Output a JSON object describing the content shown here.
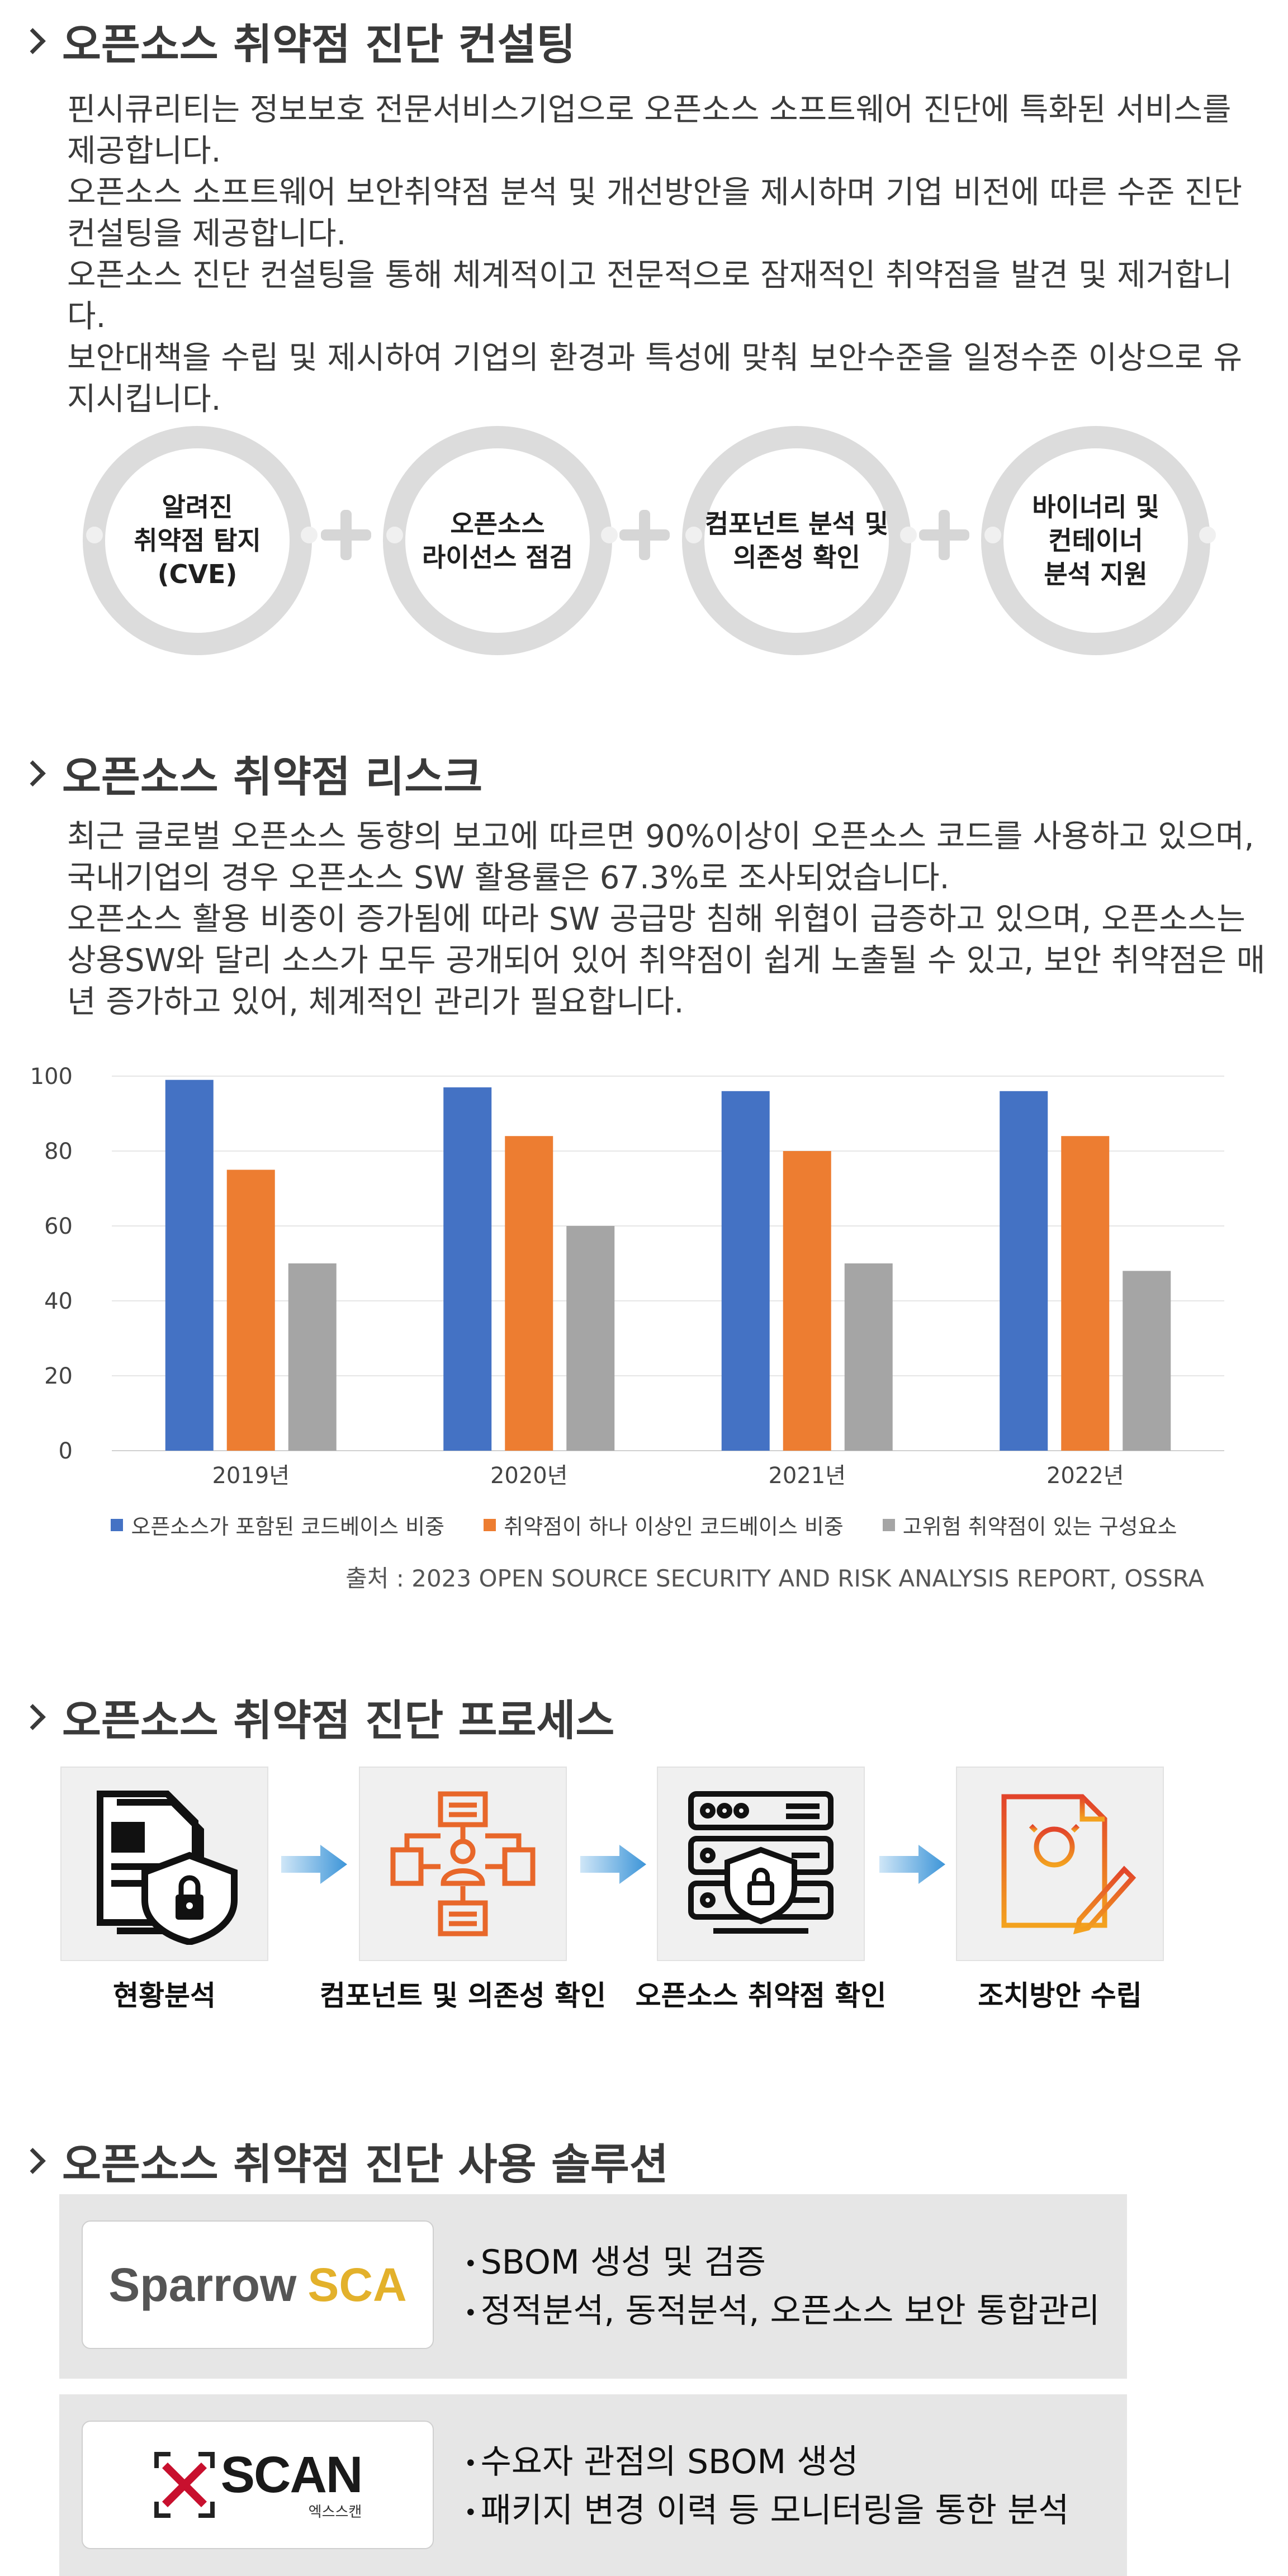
{
  "sections": {
    "consulting": {
      "title": "오픈소스 취약점 진단 컨설팅",
      "paragraphs": [
        "핀시큐리티는 정보보호 전문서비스기업으로 오픈소스 소프트웨어 진단에 특화된 서비스를 제공합니다.",
        "오픈소스 소프트웨어 보안취약점 분석 및 개선방안을 제시하며 기업 비전에 따른 수준 진단 컨설팅을 제공합니다.",
        "오픈소스 진단 컨설팅을 통해 체계적이고 전문적으로 잠재적인 취약점을 발견 및 제거합니다.",
        "보안대책을 수립 및 제시하여 기업의 환경과 특성에 맞춰 보안수준을 일정수준 이상으로 유지시킵니다."
      ],
      "circles": [
        "알려진\n취약점 탐지\n(CVE)",
        "오픈소스\n라이선스 점검",
        "컴포넌트 분석 및\n의존성 확인",
        "바이너리 및\n컨테이너\n분석 지원"
      ]
    },
    "risk": {
      "title": "오픈소스 취약점 리스크",
      "paragraphs": [
        "최근 글로벌 오픈소스 동향의 보고에 따르면 90%이상이 오픈소스 코드를 사용하고 있으며, 국내기업의 경우  오픈소스 SW 활용률은 67.3%로 조사되었습니다.",
        "오픈소스 활용 비중이 증가됨에 따라 SW 공급망 침해 위협이 급증하고 있으며, 오픈소스는 상용SW와 달리 소스가 모두 공개되어 있어 취약점이 쉽게 노출될 수 있고, 보안 취약점은 매년 증가하고 있어, 체계적인 관리가 필요합니다."
      ],
      "source": "출처 : 2023 OPEN SOURCE SECURITY AND RISK ANALYSIS REPORT, OSSRA"
    },
    "process": {
      "title": "오픈소스 취약점 진단 프로세스",
      "steps": [
        {
          "label": "현황분석",
          "icon": "document-lock-icon"
        },
        {
          "label": "컴포넌트 및 의존성 확인",
          "icon": "component-network-icon"
        },
        {
          "label": "오픈소스 취약점 확인",
          "icon": "server-shield-icon"
        },
        {
          "label": "조치방안 수립",
          "icon": "lightbulb-pencil-icon"
        }
      ]
    },
    "solutions": {
      "title": "오픈소스 취약점 진단 사용 솔루션",
      "items": [
        {
          "logo_main": "Sparrow",
          "logo_accent": "SCA",
          "features": [
            "SBOM 생성 및 검증",
            "정적분석, 동적분석, 오픈소스 보안 통합관리"
          ]
        },
        {
          "logo_main": "SCAN",
          "logo_sub": "엑스스캔",
          "features": [
            "수요자 관점의 SBOM 생성",
            "패키지 변경 이력 등 모니터링을 통한 분석"
          ]
        }
      ]
    }
  },
  "chart_data": {
    "type": "bar",
    "categories": [
      "2019년",
      "2020년",
      "2021년",
      "2022년"
    ],
    "series": [
      {
        "name": "오픈소스가 포함된 코드베이스 비중",
        "values": [
          99,
          97,
          96,
          96
        ],
        "color": "#4472c4"
      },
      {
        "name": "취약점이 하나 이상인 코드베이스 비중",
        "values": [
          75,
          84,
          80,
          84
        ],
        "color": "#ed7d31"
      },
      {
        "name": "고위험 취약점이 있는 구성요소",
        "values": [
          50,
          60,
          50,
          48
        ],
        "color": "#a5a5a5"
      }
    ],
    "yticks": [
      0,
      20,
      40,
      60,
      80,
      100
    ],
    "ylim": [
      0,
      100
    ],
    "grid": true,
    "legend_position": "bottom"
  },
  "colors": {
    "circle_ring": "#dcdcdc",
    "accent_gold": "#e3b12b",
    "xscan_red": "#c8102e",
    "arrow_blue": "#5aa7e0"
  }
}
